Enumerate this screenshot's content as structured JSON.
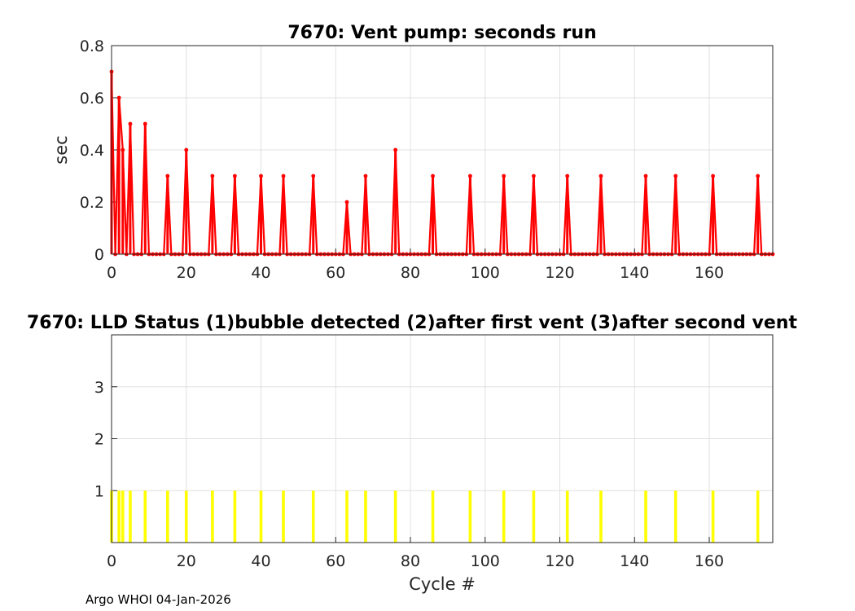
{
  "footer": "Argo WHOI 04-Jan-2026",
  "colors": {
    "stem": "#ff0000",
    "bar": "#ffff00",
    "grid": "#e0e0e0",
    "axis": "#262626"
  },
  "chart_data": [
    {
      "type": "stem",
      "title": "7670: Vent pump: seconds run",
      "xlabel": "",
      "ylabel": "sec",
      "xlim": [
        0,
        177
      ],
      "ylim": [
        0,
        0.8
      ],
      "xticks": [
        "0",
        "20",
        "40",
        "60",
        "80",
        "100",
        "120",
        "140",
        "160"
      ],
      "yticks": [
        "0",
        "0.2",
        "0.4",
        "0.6",
        "0.8"
      ],
      "grid": true,
      "x_range": [
        0,
        177
      ],
      "spikes": [
        {
          "x": 0,
          "y": 0.7
        },
        {
          "x": 2,
          "y": 0.6
        },
        {
          "x": 3,
          "y": 0.4
        },
        {
          "x": 5,
          "y": 0.5
        },
        {
          "x": 9,
          "y": 0.5
        },
        {
          "x": 15,
          "y": 0.3
        },
        {
          "x": 20,
          "y": 0.4
        },
        {
          "x": 27,
          "y": 0.3
        },
        {
          "x": 33,
          "y": 0.3
        },
        {
          "x": 40,
          "y": 0.3
        },
        {
          "x": 46,
          "y": 0.3
        },
        {
          "x": 54,
          "y": 0.3
        },
        {
          "x": 63,
          "y": 0.2
        },
        {
          "x": 68,
          "y": 0.3
        },
        {
          "x": 76,
          "y": 0.4
        },
        {
          "x": 86,
          "y": 0.3
        },
        {
          "x": 96,
          "y": 0.3
        },
        {
          "x": 105,
          "y": 0.3
        },
        {
          "x": 113,
          "y": 0.3
        },
        {
          "x": 122,
          "y": 0.3
        },
        {
          "x": 131,
          "y": 0.3
        },
        {
          "x": 143,
          "y": 0.3
        },
        {
          "x": 151,
          "y": 0.3
        },
        {
          "x": 161,
          "y": 0.3
        },
        {
          "x": 173,
          "y": 0.3
        }
      ],
      "zero_value_note": "all other cycles 0"
    },
    {
      "type": "bar",
      "title": "7670: LLD Status   (1)bubble detected   (2)after first vent  (3)after second vent",
      "xlabel": "Cycle #",
      "ylabel": "",
      "xlim": [
        0,
        177
      ],
      "ylim": [
        0,
        4
      ],
      "xticks": [
        "0",
        "20",
        "40",
        "60",
        "80",
        "100",
        "120",
        "140",
        "160"
      ],
      "yticks": [
        "1",
        "2",
        "3"
      ],
      "grid": true,
      "bars": [
        {
          "x": 0,
          "y": 1
        },
        {
          "x": 2,
          "y": 1
        },
        {
          "x": 3,
          "y": 1
        },
        {
          "x": 5,
          "y": 1
        },
        {
          "x": 9,
          "y": 1
        },
        {
          "x": 15,
          "y": 1
        },
        {
          "x": 20,
          "y": 1
        },
        {
          "x": 27,
          "y": 1
        },
        {
          "x": 33,
          "y": 1
        },
        {
          "x": 40,
          "y": 1
        },
        {
          "x": 46,
          "y": 1
        },
        {
          "x": 54,
          "y": 1
        },
        {
          "x": 63,
          "y": 1
        },
        {
          "x": 68,
          "y": 1
        },
        {
          "x": 76,
          "y": 1
        },
        {
          "x": 86,
          "y": 1
        },
        {
          "x": 96,
          "y": 1
        },
        {
          "x": 105,
          "y": 1
        },
        {
          "x": 113,
          "y": 1
        },
        {
          "x": 122,
          "y": 1
        },
        {
          "x": 131,
          "y": 1
        },
        {
          "x": 143,
          "y": 1
        },
        {
          "x": 151,
          "y": 1
        },
        {
          "x": 161,
          "y": 1
        },
        {
          "x": 173,
          "y": 1
        }
      ]
    }
  ]
}
